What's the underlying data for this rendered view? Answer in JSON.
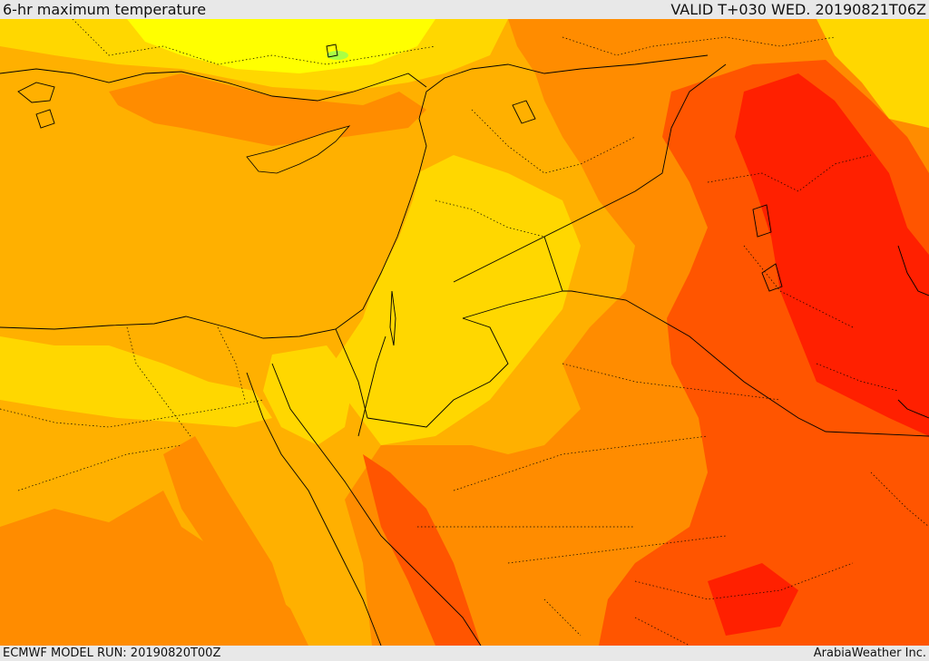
{
  "header": {
    "title": "6-hr maximum temperature",
    "valid": "VALID T+030 WED. 20190821T06Z"
  },
  "footer": {
    "model_run": "ECMWF MODEL RUN: 20190820T00Z",
    "credit": "ArabiaWeather Inc."
  },
  "palette": {
    "yellow": "#ffff00",
    "gold": "#ffd700",
    "amber": "#ffb000",
    "orange": "#ff8c00",
    "red_orange": "#ff5500",
    "red": "#ff2000",
    "green_patch": "#aaff44"
  }
}
